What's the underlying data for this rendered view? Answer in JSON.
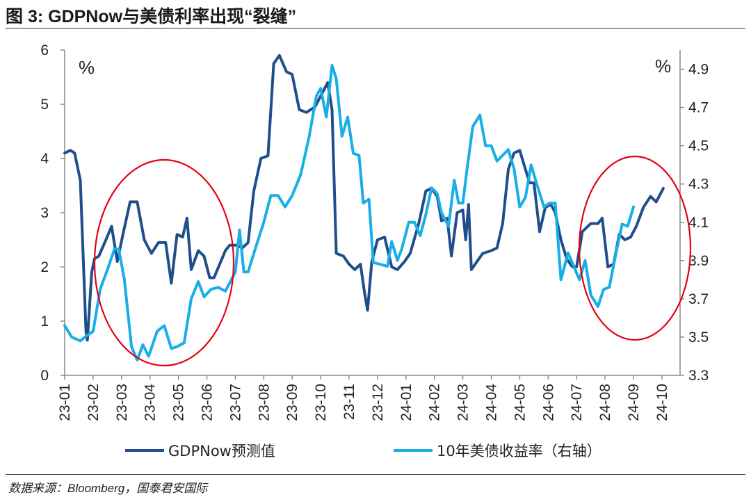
{
  "title": "图 3:  GDPNow与美债利率出现“裂缝”",
  "source": "数据来源：Bloomberg，国泰君安国际",
  "chart_data": {
    "type": "line",
    "left_unit": "%",
    "right_unit": "%",
    "categories": [
      "23-01",
      "23-02",
      "23-03",
      "23-04",
      "23-05",
      "23-06",
      "23-07",
      "23-08",
      "23-09",
      "23-10",
      "23-11",
      "23-12",
      "24-01",
      "24-02",
      "24-03",
      "24-04",
      "24-05",
      "24-06",
      "24-07",
      "24-08",
      "24-09",
      "24-10"
    ],
    "y_left": {
      "min": 0,
      "max": 6,
      "ticks": [
        "0",
        "1",
        "2",
        "3",
        "4",
        "5",
        "6"
      ]
    },
    "y_right": {
      "min": 3.3,
      "max": 5.0,
      "ticks": [
        "3.3",
        "3.5",
        "3.7",
        "3.9",
        "4.1",
        "4.3",
        "4.5",
        "4.7",
        "4.9"
      ]
    },
    "series": [
      {
        "name": "GDPNow预测值",
        "axis": "left",
        "color": "#1f4e8c",
        "points": [
          [
            0.0,
            4.1
          ],
          [
            0.2,
            4.15
          ],
          [
            0.35,
            4.1
          ],
          [
            0.55,
            3.6
          ],
          [
            0.75,
            0.8
          ],
          [
            0.8,
            0.65
          ],
          [
            0.95,
            1.9
          ],
          [
            1.05,
            2.15
          ],
          [
            1.2,
            2.2
          ],
          [
            1.45,
            2.5
          ],
          [
            1.65,
            2.75
          ],
          [
            1.85,
            2.1
          ],
          [
            2.05,
            2.6
          ],
          [
            2.3,
            3.2
          ],
          [
            2.55,
            3.2
          ],
          [
            2.8,
            2.5
          ],
          [
            3.05,
            2.25
          ],
          [
            3.3,
            2.45
          ],
          [
            3.55,
            2.45
          ],
          [
            3.75,
            1.7
          ],
          [
            3.95,
            2.6
          ],
          [
            4.15,
            2.55
          ],
          [
            4.3,
            2.9
          ],
          [
            4.45,
            1.95
          ],
          [
            4.7,
            2.3
          ],
          [
            4.9,
            2.2
          ],
          [
            5.1,
            1.8
          ],
          [
            5.25,
            1.8
          ],
          [
            5.45,
            2.05
          ],
          [
            5.65,
            2.3
          ],
          [
            5.8,
            2.4
          ],
          [
            6.05,
            2.4
          ],
          [
            6.25,
            2.35
          ],
          [
            6.45,
            2.45
          ],
          [
            6.65,
            3.4
          ],
          [
            6.9,
            4.0
          ],
          [
            7.15,
            4.05
          ],
          [
            7.35,
            5.75
          ],
          [
            7.55,
            5.9
          ],
          [
            7.8,
            5.6
          ],
          [
            8.0,
            5.55
          ],
          [
            8.25,
            4.9
          ],
          [
            8.5,
            4.85
          ],
          [
            8.8,
            4.95
          ],
          [
            9.05,
            5.2
          ],
          [
            9.25,
            5.4
          ],
          [
            9.4,
            4.9
          ],
          [
            9.55,
            2.25
          ],
          [
            9.8,
            2.2
          ],
          [
            10.0,
            2.05
          ],
          [
            10.2,
            1.95
          ],
          [
            10.4,
            2.05
          ],
          [
            10.55,
            1.5
          ],
          [
            10.65,
            1.2
          ],
          [
            10.8,
            2.1
          ],
          [
            11.0,
            2.5
          ],
          [
            11.25,
            2.55
          ],
          [
            11.5,
            2.0
          ],
          [
            11.7,
            1.95
          ],
          [
            11.95,
            2.1
          ],
          [
            12.15,
            2.25
          ],
          [
            12.45,
            2.8
          ],
          [
            12.7,
            3.4
          ],
          [
            12.9,
            3.45
          ],
          [
            13.1,
            3.3
          ],
          [
            13.25,
            2.85
          ],
          [
            13.45,
            2.9
          ],
          [
            13.6,
            2.2
          ],
          [
            13.8,
            3.0
          ],
          [
            14.0,
            3.05
          ],
          [
            14.1,
            2.5
          ],
          [
            14.2,
            3.15
          ],
          [
            14.3,
            1.95
          ],
          [
            14.5,
            2.1
          ],
          [
            14.7,
            2.25
          ],
          [
            15.0,
            2.3
          ],
          [
            15.2,
            2.35
          ],
          [
            15.4,
            2.8
          ],
          [
            15.6,
            3.8
          ],
          [
            15.8,
            4.1
          ],
          [
            16.0,
            4.15
          ],
          [
            16.2,
            3.8
          ],
          [
            16.35,
            3.55
          ],
          [
            16.5,
            3.55
          ],
          [
            16.7,
            2.65
          ],
          [
            16.9,
            3.1
          ],
          [
            17.1,
            3.15
          ],
          [
            17.25,
            3.0
          ],
          [
            17.45,
            2.5
          ],
          [
            17.65,
            2.15
          ],
          [
            17.85,
            2.0
          ],
          [
            18.0,
            2.0
          ],
          [
            18.2,
            2.65
          ],
          [
            18.5,
            2.8
          ],
          [
            18.75,
            2.8
          ],
          [
            18.9,
            2.9
          ],
          [
            19.1,
            2.0
          ],
          [
            19.3,
            2.05
          ],
          [
            19.5,
            2.6
          ],
          [
            19.7,
            2.5
          ],
          [
            19.9,
            2.55
          ],
          [
            20.1,
            2.75
          ],
          [
            20.35,
            3.1
          ],
          [
            20.6,
            3.3
          ],
          [
            20.8,
            3.2
          ],
          [
            21.05,
            3.45
          ]
        ]
      },
      {
        "name": "10年美债收益率（右轴）",
        "axis": "right",
        "color": "#18aee6",
        "points": [
          [
            0.0,
            3.56
          ],
          [
            0.25,
            3.5
          ],
          [
            0.55,
            3.48
          ],
          [
            0.8,
            3.51
          ],
          [
            1.0,
            3.53
          ],
          [
            1.25,
            3.75
          ],
          [
            1.5,
            3.85
          ],
          [
            1.75,
            3.96
          ],
          [
            1.9,
            3.96
          ],
          [
            2.1,
            3.8
          ],
          [
            2.35,
            3.45
          ],
          [
            2.55,
            3.38
          ],
          [
            2.75,
            3.46
          ],
          [
            2.95,
            3.4
          ],
          [
            3.25,
            3.53
          ],
          [
            3.5,
            3.56
          ],
          [
            3.75,
            3.44
          ],
          [
            3.95,
            3.45
          ],
          [
            4.2,
            3.47
          ],
          [
            4.45,
            3.7
          ],
          [
            4.7,
            3.79
          ],
          [
            4.9,
            3.71
          ],
          [
            5.15,
            3.75
          ],
          [
            5.4,
            3.76
          ],
          [
            5.65,
            3.74
          ],
          [
            6.0,
            3.84
          ],
          [
            6.15,
            4.06
          ],
          [
            6.3,
            3.84
          ],
          [
            6.45,
            3.84
          ],
          [
            6.7,
            3.96
          ],
          [
            7.0,
            4.1
          ],
          [
            7.25,
            4.24
          ],
          [
            7.5,
            4.24
          ],
          [
            7.75,
            4.18
          ],
          [
            8.0,
            4.24
          ],
          [
            8.3,
            4.35
          ],
          [
            8.6,
            4.55
          ],
          [
            8.85,
            4.76
          ],
          [
            9.0,
            4.8
          ],
          [
            9.2,
            4.65
          ],
          [
            9.4,
            4.92
          ],
          [
            9.55,
            4.85
          ],
          [
            9.75,
            4.55
          ],
          [
            9.95,
            4.65
          ],
          [
            10.15,
            4.46
          ],
          [
            10.35,
            4.45
          ],
          [
            10.5,
            4.2
          ],
          [
            10.7,
            4.22
          ],
          [
            10.85,
            3.89
          ],
          [
            11.1,
            3.88
          ],
          [
            11.35,
            3.87
          ],
          [
            11.5,
            4.0
          ],
          [
            11.7,
            3.9
          ],
          [
            11.85,
            3.96
          ],
          [
            12.1,
            4.1
          ],
          [
            12.3,
            4.1
          ],
          [
            12.5,
            4.03
          ],
          [
            12.7,
            4.14
          ],
          [
            12.9,
            4.28
          ],
          [
            13.1,
            4.25
          ],
          [
            13.25,
            4.15
          ],
          [
            13.5,
            4.08
          ],
          [
            13.7,
            4.32
          ],
          [
            13.85,
            4.2
          ],
          [
            14.0,
            4.2
          ],
          [
            14.15,
            4.38
          ],
          [
            14.35,
            4.6
          ],
          [
            14.6,
            4.66
          ],
          [
            14.8,
            4.5
          ],
          [
            15.0,
            4.5
          ],
          [
            15.2,
            4.42
          ],
          [
            15.4,
            4.45
          ],
          [
            15.6,
            4.48
          ],
          [
            15.8,
            4.38
          ],
          [
            16.0,
            4.18
          ],
          [
            16.2,
            4.23
          ],
          [
            16.4,
            4.4
          ],
          [
            16.6,
            4.3
          ],
          [
            16.85,
            4.18
          ],
          [
            17.05,
            4.2
          ],
          [
            17.25,
            4.2
          ],
          [
            17.45,
            3.8
          ],
          [
            17.7,
            3.94
          ],
          [
            17.9,
            3.87
          ],
          [
            18.1,
            3.8
          ],
          [
            18.3,
            3.9
          ],
          [
            18.5,
            3.72
          ],
          [
            18.75,
            3.66
          ],
          [
            18.95,
            3.75
          ],
          [
            19.15,
            3.76
          ],
          [
            19.4,
            3.95
          ],
          [
            19.6,
            4.09
          ],
          [
            19.8,
            4.08
          ],
          [
            20.0,
            4.18
          ]
        ]
      }
    ],
    "annotations": [
      {
        "type": "ellipse",
        "color": "#e60012"
      },
      {
        "type": "ellipse",
        "color": "#e60012"
      }
    ],
    "legend": {
      "position": "bottom",
      "entries": [
        "GDPNow预测值",
        "10年美债收益率（右轴）"
      ]
    }
  }
}
